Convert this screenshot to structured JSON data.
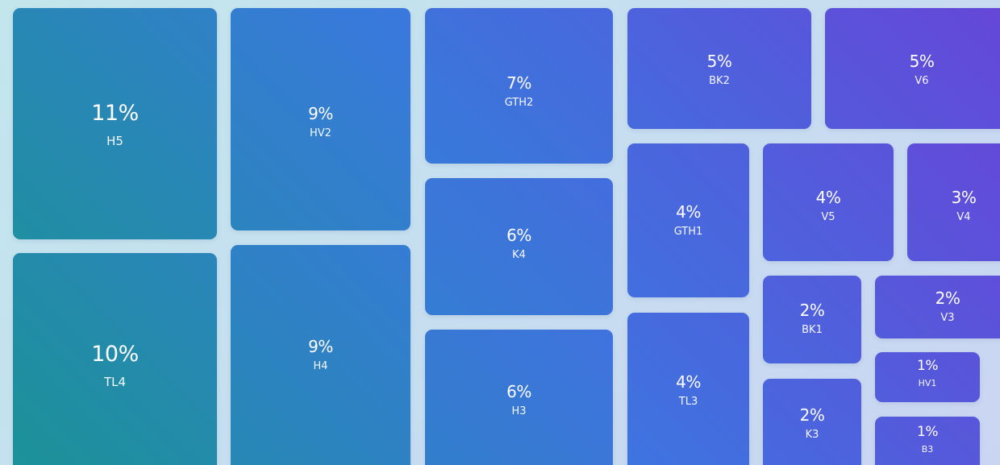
{
  "chart_data": {
    "type": "treemap",
    "title": "",
    "colors": {
      "start": "#1b9296",
      "mid": "#3a78e0",
      "end": "#6646d8"
    },
    "items": [
      {
        "name": "H5",
        "value": 11,
        "label": "11%"
      },
      {
        "name": "TL4",
        "value": 10,
        "label": "10%"
      },
      {
        "name": "HV2",
        "value": 9,
        "label": "9%"
      },
      {
        "name": "H4",
        "value": 9,
        "label": "9%"
      },
      {
        "name": "GTH2",
        "value": 7,
        "label": "7%"
      },
      {
        "name": "K4",
        "value": 6,
        "label": "6%"
      },
      {
        "name": "H3",
        "value": 6,
        "label": "6%"
      },
      {
        "name": "BK2",
        "value": 5,
        "label": "5%"
      },
      {
        "name": "V6",
        "value": 5,
        "label": "5%"
      },
      {
        "name": "GTH1",
        "value": 4,
        "label": "4%"
      },
      {
        "name": "TL3",
        "value": 4,
        "label": "4%"
      },
      {
        "name": "V5",
        "value": 4,
        "label": "4%"
      },
      {
        "name": "V4",
        "value": 3,
        "label": "3%"
      },
      {
        "name": "BK1",
        "value": 2,
        "label": "2%"
      },
      {
        "name": "K3",
        "value": 2,
        "label": "2%"
      },
      {
        "name": "V3",
        "value": 2,
        "label": "2%"
      },
      {
        "name": "HV1",
        "value": 1,
        "label": "1%"
      },
      {
        "name": "B3",
        "value": 1,
        "label": "1%"
      }
    ]
  }
}
